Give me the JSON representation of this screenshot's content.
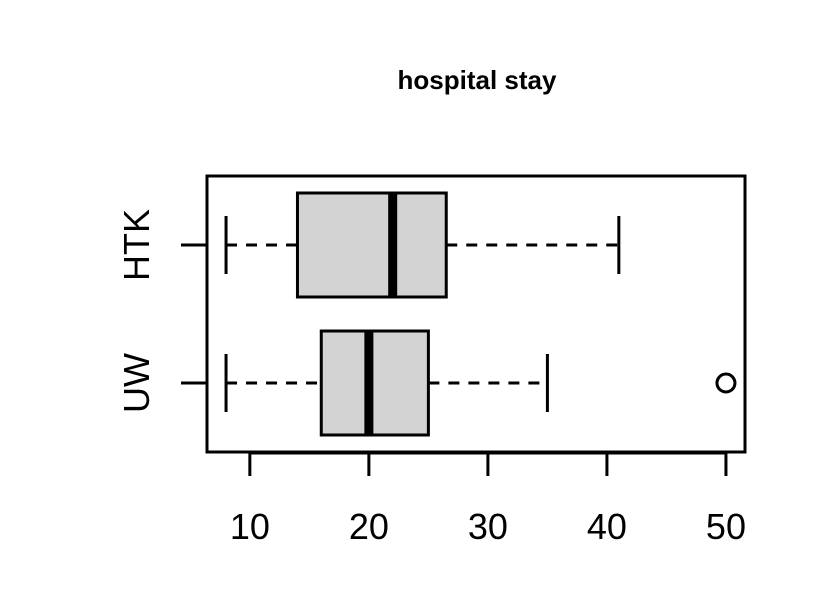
{
  "chart_data": {
    "type": "boxplot",
    "title": "hospital stay",
    "xlabel": "",
    "ylabel": "",
    "xlim": [
      6.4,
      51.6
    ],
    "x_ticks": [
      10,
      20,
      30,
      40,
      50
    ],
    "x_tick_labels": [
      "10",
      "20",
      "30",
      "40",
      "50"
    ],
    "grid": false,
    "orientation": "horizontal",
    "groups": [
      {
        "label": "HTK",
        "whisker_low": 8,
        "q1": 14,
        "median": 22,
        "q3": 26.5,
        "whisker_high": 41,
        "outliers": []
      },
      {
        "label": "UW",
        "whisker_low": 8,
        "q1": 16,
        "median": 20,
        "q3": 25,
        "whisker_high": 35,
        "outliers": [
          50
        ]
      }
    ],
    "colors": {
      "box_fill": "#d3d3d3",
      "stroke": "#000000"
    }
  }
}
